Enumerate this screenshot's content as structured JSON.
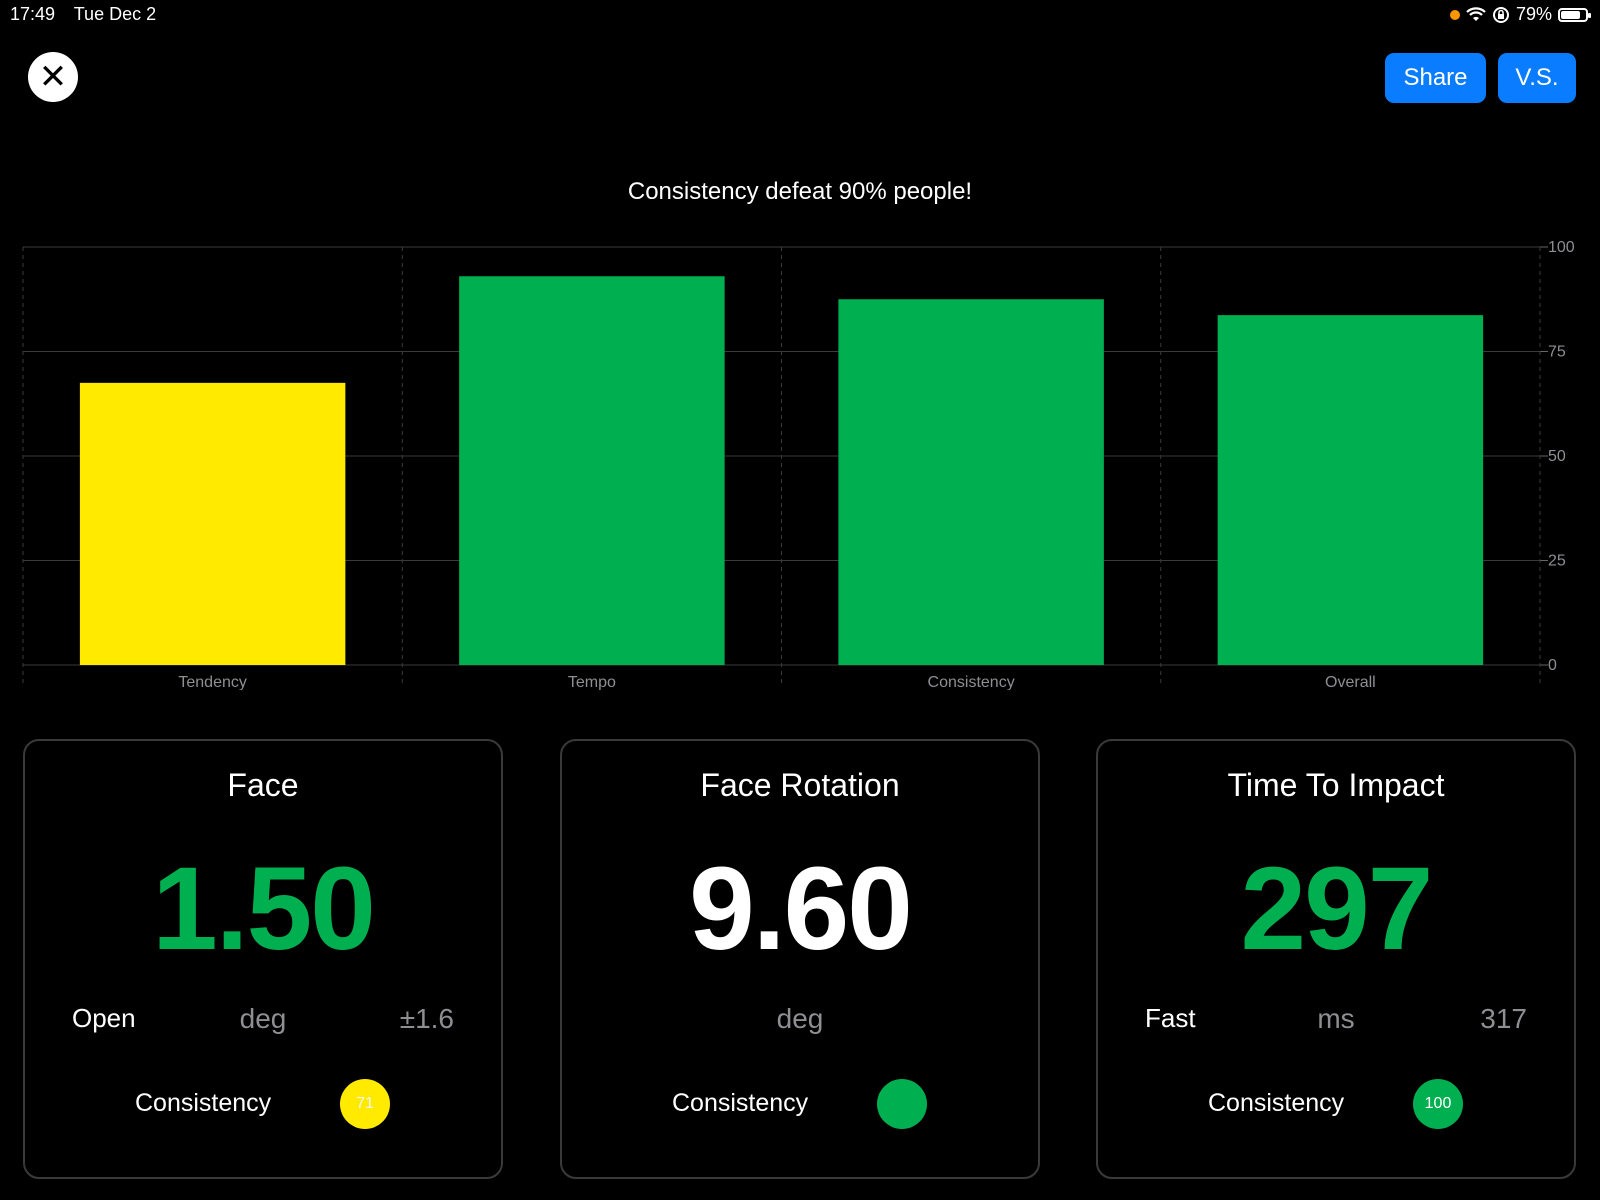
{
  "status_bar": {
    "time": "17:49",
    "date": "Tue Dec 2",
    "battery": "79%",
    "battery_level": 0.79
  },
  "header": {
    "close_icon": "close-icon",
    "share_label": "Share",
    "vs_label": "V.S."
  },
  "chart_data": {
    "type": "bar",
    "title": "Consistency defeat 90% people!",
    "categories": [
      "Tendency",
      "Tempo",
      "Consistency",
      "Overall"
    ],
    "values": [
      67.5,
      93,
      87.5,
      83.7
    ],
    "colors": [
      "#ffea00",
      "#00b050",
      "#00b050",
      "#00b050"
    ],
    "ylim": [
      0,
      100
    ],
    "yticks": [
      0,
      25,
      50,
      75,
      100
    ],
    "y_axis_side": "right",
    "grid": true
  },
  "cards": [
    {
      "title": "Face",
      "value": "1.50",
      "value_color": "#00b050",
      "left_label": "Open",
      "unit": "deg",
      "right_label": "±1.6",
      "consistency_label": "Consistency",
      "badge_text": "71",
      "badge_color": "#ffea00",
      "badge_text_color": "#f5f5f5"
    },
    {
      "title": "Face Rotation",
      "value": "9.60",
      "value_color": "#ffffff",
      "left_label": "",
      "unit": "deg",
      "right_label": "",
      "consistency_label": "Consistency",
      "badge_text": "",
      "badge_color": "#00b050",
      "badge_text_color": "#ffffff"
    },
    {
      "title": "Time To Impact",
      "value": "297",
      "value_color": "#00b050",
      "left_label": "Fast",
      "unit": "ms",
      "right_label": "317",
      "consistency_label": "Consistency",
      "badge_text": "100",
      "badge_color": "#00b050",
      "badge_text_color": "#ffffff"
    }
  ]
}
